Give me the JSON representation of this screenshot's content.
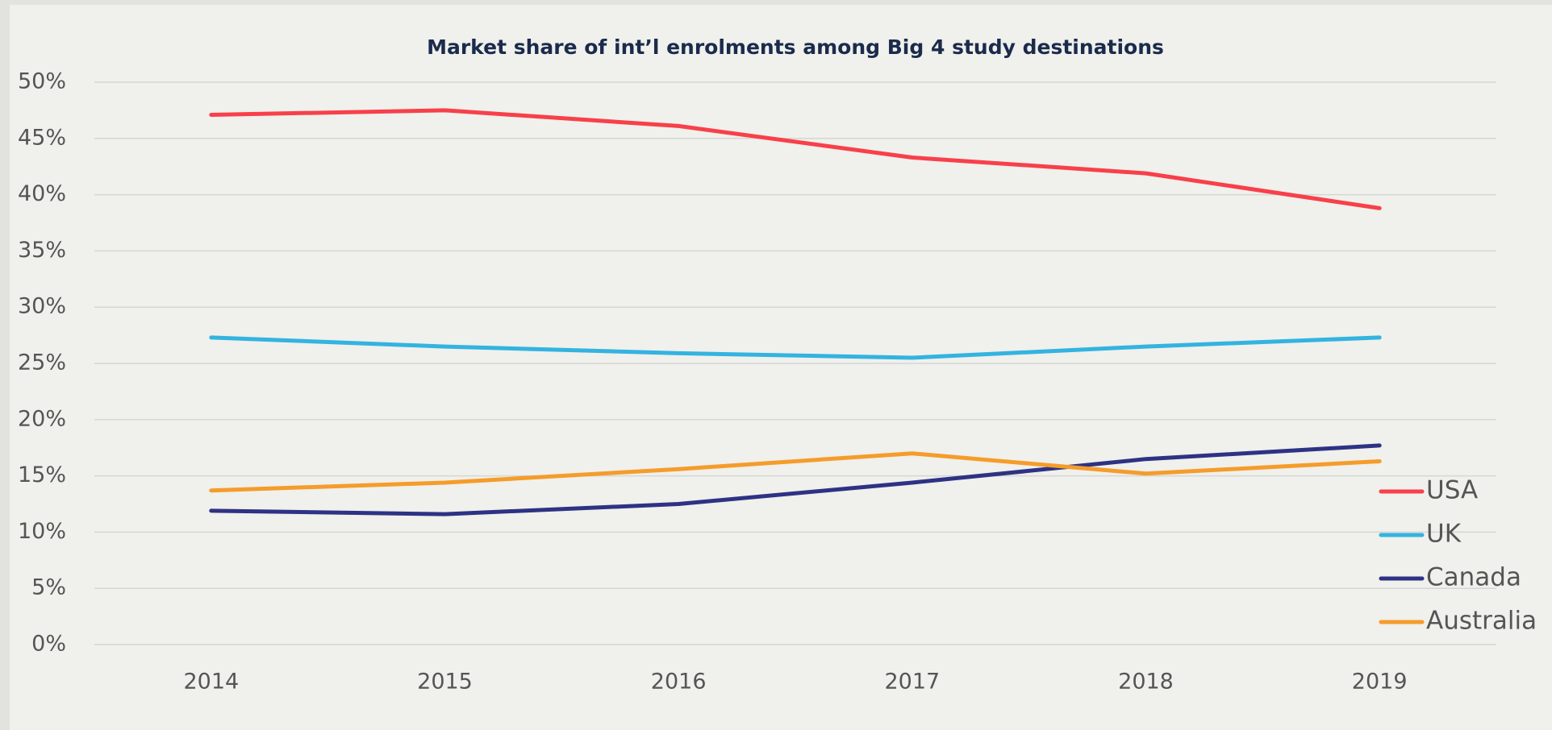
{
  "chart_data": {
    "type": "line",
    "title": "Market share of int’l enrolments among Big 4 study destinations",
    "categories": [
      "2014",
      "2015",
      "2016",
      "2017",
      "2018",
      "2019"
    ],
    "series": [
      {
        "name": "USA",
        "color": "#f8404a",
        "values": [
          47.1,
          47.5,
          46.1,
          43.3,
          41.9,
          38.8
        ]
      },
      {
        "name": "UK",
        "color": "#33b3e0",
        "values": [
          27.3,
          26.5,
          25.9,
          25.5,
          26.5,
          27.3
        ]
      },
      {
        "name": "Canada",
        "color": "#2e3284",
        "values": [
          11.9,
          11.6,
          12.5,
          14.4,
          16.5,
          17.7
        ]
      },
      {
        "name": "Australia",
        "color": "#f59c2a",
        "values": [
          13.7,
          14.4,
          15.6,
          17.0,
          15.2,
          16.3
        ]
      }
    ],
    "ylim": [
      0,
      50
    ],
    "yticks": [
      {
        "value": 0,
        "label": "0%"
      },
      {
        "value": 5,
        "label": "5%"
      },
      {
        "value": 10,
        "label": "10%"
      },
      {
        "value": 15,
        "label": "15%"
      },
      {
        "value": 20,
        "label": "20%"
      },
      {
        "value": 25,
        "label": "25%"
      },
      {
        "value": 30,
        "label": "30%"
      },
      {
        "value": 35,
        "label": "35%"
      },
      {
        "value": 40,
        "label": "40%"
      },
      {
        "value": 45,
        "label": "45%"
      },
      {
        "value": 50,
        "label": "50%"
      }
    ],
    "grid": true,
    "legend": "right"
  }
}
